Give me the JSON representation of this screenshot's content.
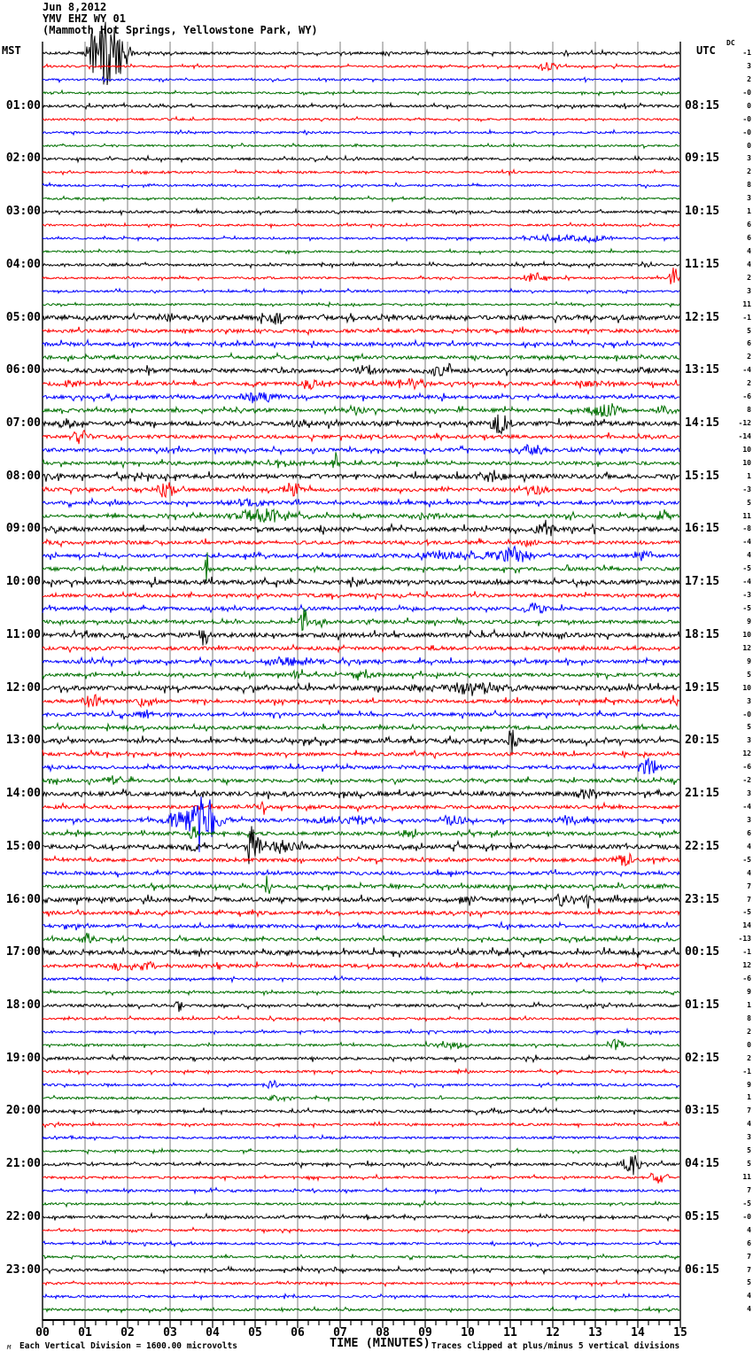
{
  "header": {
    "date": "Jun 8,2012",
    "station": "YMV EHZ WY 01",
    "location": "(Mammoth Hot Springs, Yellowstone Park, WY)"
  },
  "axes": {
    "left_label": "MST",
    "right_label": "UTC",
    "dc_label": "DC",
    "x_title": "TIME (MINUTES)",
    "x_ticks": [
      "00",
      "01",
      "02",
      "03",
      "04",
      "05",
      "06",
      "07",
      "08",
      "09",
      "10",
      "11",
      "12",
      "13",
      "14",
      "15"
    ]
  },
  "footer": {
    "watermark": "M",
    "scale_note": "Each Vertical Division = 1600.00 microvolts",
    "clip_note": "Traces clipped at plus/minus 5 vertical divisions"
  },
  "colors": {
    "trace_cycle": [
      "#000000",
      "#ff0000",
      "#0000ff",
      "#007000"
    ],
    "grid": "#7d7d7d",
    "axis": "#000000",
    "background": "#ffffff"
  },
  "left_times": [
    "01:00",
    "02:00",
    "03:00",
    "04:00",
    "05:00",
    "06:00",
    "07:00",
    "08:00",
    "09:00",
    "10:00",
    "11:00",
    "12:00",
    "13:00",
    "14:00",
    "15:00",
    "16:00",
    "17:00",
    "18:00",
    "19:00",
    "20:00",
    "21:00",
    "22:00",
    "23:00"
  ],
  "right_times": [
    "08:15",
    "09:15",
    "10:15",
    "11:15",
    "12:15",
    "13:15",
    "14:15",
    "15:15",
    "16:15",
    "17:15",
    "18:15",
    "19:15",
    "20:15",
    "21:15",
    "22:15",
    "23:15",
    "00:15",
    "01:15",
    "02:15",
    "03:15",
    "04:15",
    "05:15",
    "06:15"
  ],
  "chart_data": {
    "type": "line",
    "subtype": "helicorder-seismogram",
    "title": "YMV EHZ WY 01 helicorder, Jun 8,2012",
    "xlabel": "TIME (MINUTES)",
    "x_range_minutes": [
      0,
      15
    ],
    "rows": 96,
    "minutes_per_row": 15,
    "traces_per_hour": 4,
    "first_row_start_mst": "00:00",
    "scale_microvolts_per_division": "1600.00",
    "clip_divisions": 5,
    "dc_offsets": [
      "-1",
      "3",
      "2",
      "-0",
      "0",
      "-0",
      "-0",
      "0",
      "3",
      "2",
      "8",
      "3",
      "1",
      "6",
      "6",
      "4",
      "4",
      "2",
      "3",
      "11",
      "-1",
      "5",
      "6",
      "2",
      "-4",
      "2",
      "-6",
      "8",
      "-12",
      "-14",
      "10",
      "10",
      "1",
      "-3",
      "5",
      "11",
      "-8",
      "-4",
      "4",
      "-5",
      "-4",
      "-3",
      "-5",
      "9",
      "10",
      "12",
      "9",
      "5",
      "10",
      "3",
      "-0",
      "5",
      "3",
      "12",
      "-6",
      "-2",
      "3",
      "-4",
      "3",
      "6",
      "4",
      "-5",
      "4",
      "7",
      "7",
      "-5",
      "14",
      "-13",
      "-1",
      "12",
      "-6",
      "9",
      "1",
      "8",
      "2",
      "0",
      "2",
      "-1",
      "9",
      "1",
      "7",
      "4",
      "3",
      "5",
      "5",
      "11",
      "7",
      "-5",
      "-0",
      "4",
      "6",
      "7",
      "7",
      "5",
      "4",
      "4"
    ],
    "events": [
      {
        "row": 0,
        "t": 1.5,
        "d": 0.5,
        "a": 40
      },
      {
        "row": 0,
        "t": 1.15,
        "d": 0.2,
        "a": 14
      },
      {
        "row": 0,
        "t": 1.9,
        "d": 0.3,
        "a": 18
      },
      {
        "row": 1,
        "t": 11.9,
        "d": 0.4,
        "a": 7
      },
      {
        "row": 14,
        "t": 12.0,
        "d": 1.2,
        "a": 4
      },
      {
        "row": 14,
        "t": 12.9,
        "d": 0.8,
        "a": 4
      },
      {
        "row": 17,
        "t": 11.6,
        "d": 0.5,
        "a": 6
      },
      {
        "row": 17,
        "t": 14.85,
        "d": 0.2,
        "a": 13
      },
      {
        "row": 20,
        "t": 3.0,
        "d": 0.3,
        "a": 5
      },
      {
        "row": 20,
        "t": 5.4,
        "d": 0.6,
        "a": 8
      },
      {
        "row": 24,
        "t": 7.6,
        "d": 0.4,
        "a": 6
      },
      {
        "row": 24,
        "t": 9.3,
        "d": 0.5,
        "a": 6
      },
      {
        "row": 24,
        "t": 14.2,
        "d": 0.5,
        "a": 5
      },
      {
        "row": 25,
        "t": 0.7,
        "d": 0.4,
        "a": 5
      },
      {
        "row": 25,
        "t": 6.3,
        "d": 0.5,
        "a": 6
      },
      {
        "row": 25,
        "t": 8.6,
        "d": 1.2,
        "a": 5
      },
      {
        "row": 25,
        "t": 12.9,
        "d": 0.8,
        "a": 5
      },
      {
        "row": 26,
        "t": 1.6,
        "d": 0.3,
        "a": 4
      },
      {
        "row": 26,
        "t": 5.1,
        "d": 0.8,
        "a": 6
      },
      {
        "row": 27,
        "t": 7.4,
        "d": 0.5,
        "a": 6
      },
      {
        "row": 27,
        "t": 13.2,
        "d": 0.7,
        "a": 9
      },
      {
        "row": 27,
        "t": 14.6,
        "d": 0.4,
        "a": 6
      },
      {
        "row": 28,
        "t": 0.5,
        "d": 0.4,
        "a": 5
      },
      {
        "row": 28,
        "t": 6.0,
        "d": 0.4,
        "a": 4
      },
      {
        "row": 28,
        "t": 10.75,
        "d": 0.4,
        "a": 13
      },
      {
        "row": 29,
        "t": 0.9,
        "d": 0.4,
        "a": 8
      },
      {
        "row": 30,
        "t": 11.5,
        "d": 0.7,
        "a": 7
      },
      {
        "row": 31,
        "t": 6.9,
        "d": 0.12,
        "a": 12
      },
      {
        "row": 31,
        "t": 5.5,
        "d": 1.5,
        "a": 3
      },
      {
        "row": 32,
        "t": 0.3,
        "d": 0.3,
        "a": 5
      },
      {
        "row": 32,
        "t": 10.6,
        "d": 0.6,
        "a": 6
      },
      {
        "row": 33,
        "t": 2.9,
        "d": 0.4,
        "a": 9
      },
      {
        "row": 33,
        "t": 5.9,
        "d": 0.5,
        "a": 7
      },
      {
        "row": 33,
        "t": 11.6,
        "d": 0.5,
        "a": 7
      },
      {
        "row": 34,
        "t": 4.8,
        "d": 1.0,
        "a": 4
      },
      {
        "row": 35,
        "t": 5.2,
        "d": 1.5,
        "a": 8
      },
      {
        "row": 35,
        "t": 9.0,
        "d": 0.6,
        "a": 4
      },
      {
        "row": 35,
        "t": 14.6,
        "d": 0.3,
        "a": 7
      },
      {
        "row": 36,
        "t": 11.85,
        "d": 0.4,
        "a": 11
      },
      {
        "row": 36,
        "t": 0.25,
        "d": 0.2,
        "a": 5
      },
      {
        "row": 37,
        "t": 11.5,
        "d": 0.4,
        "a": 4
      },
      {
        "row": 38,
        "t": 9.2,
        "d": 0.6,
        "a": 5
      },
      {
        "row": 38,
        "t": 11.1,
        "d": 0.6,
        "a": 10
      },
      {
        "row": 38,
        "t": 10.0,
        "d": 1.8,
        "a": 4
      },
      {
        "row": 38,
        "t": 14.2,
        "d": 0.3,
        "a": 5
      },
      {
        "row": 39,
        "t": 3.85,
        "d": 0.12,
        "a": 26
      },
      {
        "row": 40,
        "t": 3.85,
        "d": 0.2,
        "a": 4
      },
      {
        "row": 42,
        "t": 11.6,
        "d": 0.5,
        "a": 6
      },
      {
        "row": 43,
        "t": 6.15,
        "d": 0.15,
        "a": 18
      },
      {
        "row": 43,
        "t": 6.6,
        "d": 0.3,
        "a": 5
      },
      {
        "row": 44,
        "t": 3.8,
        "d": 0.2,
        "a": 14
      },
      {
        "row": 46,
        "t": 5.9,
        "d": 1.2,
        "a": 5
      },
      {
        "row": 47,
        "t": 7.5,
        "d": 0.6,
        "a": 8
      },
      {
        "row": 47,
        "t": 6.0,
        "d": 0.3,
        "a": 4
      },
      {
        "row": 48,
        "t": 10.2,
        "d": 1.5,
        "a": 6
      },
      {
        "row": 48,
        "t": 14.0,
        "d": 0.4,
        "a": 4
      },
      {
        "row": 48,
        "t": 8.8,
        "d": 0.3,
        "a": 5
      },
      {
        "row": 49,
        "t": 1.2,
        "d": 0.4,
        "a": 9
      },
      {
        "row": 49,
        "t": 2.4,
        "d": 0.4,
        "a": 7
      },
      {
        "row": 49,
        "t": 14.85,
        "d": 0.15,
        "a": 11
      },
      {
        "row": 50,
        "t": 2.4,
        "d": 0.4,
        "a": 6
      },
      {
        "row": 52,
        "t": 11.05,
        "d": 0.2,
        "a": 16
      },
      {
        "row": 54,
        "t": 14.25,
        "d": 0.4,
        "a": 10
      },
      {
        "row": 55,
        "t": 1.7,
        "d": 0.4,
        "a": 6
      },
      {
        "row": 56,
        "t": 12.85,
        "d": 0.5,
        "a": 8
      },
      {
        "row": 57,
        "t": 5.2,
        "d": 0.15,
        "a": 10
      },
      {
        "row": 58,
        "t": 3.6,
        "d": 1.2,
        "a": 14
      },
      {
        "row": 58,
        "t": 3.7,
        "d": 0.1,
        "a": 34
      },
      {
        "row": 58,
        "t": 3.95,
        "d": 0.1,
        "a": 34
      },
      {
        "row": 58,
        "t": 9.7,
        "d": 0.6,
        "a": 7
      },
      {
        "row": 58,
        "t": 12.3,
        "d": 0.5,
        "a": 6
      },
      {
        "row": 58,
        "t": 7.2,
        "d": 2.0,
        "a": 4
      },
      {
        "row": 59,
        "t": 3.55,
        "d": 0.15,
        "a": 10
      },
      {
        "row": 59,
        "t": 8.6,
        "d": 0.4,
        "a": 5
      },
      {
        "row": 60,
        "t": 4.95,
        "d": 0.25,
        "a": 30
      },
      {
        "row": 60,
        "t": 5.8,
        "d": 1.2,
        "a": 5
      },
      {
        "row": 60,
        "t": 3.5,
        "d": 0.3,
        "a": 5
      },
      {
        "row": 61,
        "t": 13.7,
        "d": 0.5,
        "a": 7
      },
      {
        "row": 63,
        "t": 5.3,
        "d": 0.12,
        "a": 20
      },
      {
        "row": 64,
        "t": 10.0,
        "d": 0.5,
        "a": 7
      },
      {
        "row": 64,
        "t": 12.2,
        "d": 0.3,
        "a": 9
      },
      {
        "row": 64,
        "t": 12.9,
        "d": 0.4,
        "a": 10
      },
      {
        "row": 67,
        "t": 1.05,
        "d": 0.3,
        "a": 6
      },
      {
        "row": 69,
        "t": 1.8,
        "d": 0.3,
        "a": 5
      },
      {
        "row": 69,
        "t": 2.5,
        "d": 0.3,
        "a": 4
      },
      {
        "row": 72,
        "t": 3.2,
        "d": 0.15,
        "a": 11
      },
      {
        "row": 75,
        "t": 13.5,
        "d": 0.3,
        "a": 8
      },
      {
        "row": 75,
        "t": 9.6,
        "d": 0.8,
        "a": 4
      },
      {
        "row": 78,
        "t": 5.4,
        "d": 0.3,
        "a": 5
      },
      {
        "row": 79,
        "t": 5.5,
        "d": 0.4,
        "a": 4
      },
      {
        "row": 84,
        "t": 13.85,
        "d": 0.4,
        "a": 13
      },
      {
        "row": 85,
        "t": 14.5,
        "d": 0.4,
        "a": 8
      }
    ]
  }
}
